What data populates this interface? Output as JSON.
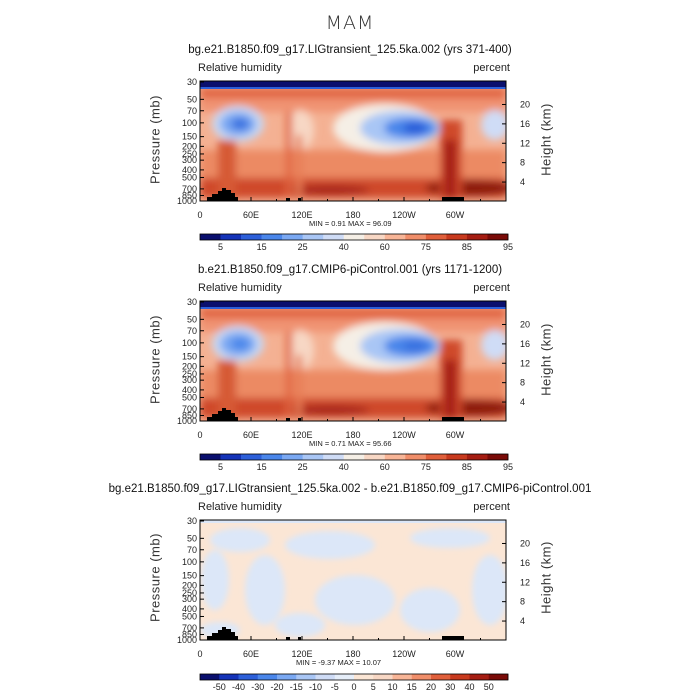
{
  "season": "MAM",
  "units_label": "percent",
  "variable_label": "Relative humidity",
  "y_left_label": "Pressure (mb)",
  "y_right_label": "Height (km)",
  "colors": {
    "land": "#000000",
    "full_field_scale": [
      "#0a0f6e",
      "#1433b8",
      "#2c5fd9",
      "#4a86ea",
      "#7aa8f2",
      "#a9c6f5",
      "#cfdcf6",
      "#f5efe6",
      "#f7d7c4",
      "#f7b597",
      "#f08e6a",
      "#e05f3b",
      "#c83a1e",
      "#a51d12",
      "#7a0b08"
    ],
    "diff_scale": [
      "#0a0f6e",
      "#1433b8",
      "#2c5fd9",
      "#4a86ea",
      "#7aa8f2",
      "#a9c6f5",
      "#cfdcf6",
      "#e6eef9",
      "#fbe6d5",
      "#f7d7c4",
      "#f7b597",
      "#f08e6a",
      "#e05f3b",
      "#c83a1e",
      "#a51d12",
      "#7a0b08"
    ]
  },
  "chart_data": [
    {
      "type": "heatmap",
      "title": "bg.e21.B1850.f09_g17.LIGtransient_125.5ka.002 (yrs 371-400)",
      "x_tick_labels": [
        "0",
        "60E",
        "120E",
        "180",
        "120W",
        "60W"
      ],
      "y_tick_labels_left": [
        "30",
        "50",
        "70",
        "100",
        "150",
        "200",
        "250",
        "300",
        "400",
        "500",
        "700",
        "850",
        "1000"
      ],
      "y_tick_labels_right": [
        "20",
        "16",
        "12",
        "8",
        "4"
      ],
      "min_text": "MIN =    0.91   MAX =   96.09",
      "colorbar_labels": [
        "5",
        "15",
        "25",
        "40",
        "60",
        "75",
        "85",
        "95"
      ]
    },
    {
      "type": "heatmap",
      "title": "b.e21.B1850.f09_g17.CMIP6-piControl.001 (yrs 1171-1200)",
      "x_tick_labels": [
        "0",
        "60E",
        "120E",
        "180",
        "120W",
        "60W"
      ],
      "y_tick_labels_left": [
        "30",
        "50",
        "70",
        "100",
        "150",
        "200",
        "250",
        "300",
        "400",
        "500",
        "700",
        "850",
        "1000"
      ],
      "y_tick_labels_right": [
        "20",
        "16",
        "12",
        "8",
        "4"
      ],
      "min_text": "MIN =    0.71   MAX =   95.66",
      "colorbar_labels": [
        "5",
        "15",
        "25",
        "40",
        "60",
        "75",
        "85",
        "95"
      ]
    },
    {
      "type": "heatmap",
      "title": "bg.e21.B1850.f09_g17.LIGtransient_125.5ka.002 - b.e21.B1850.f09_g17.CMIP6-piControl.001",
      "x_tick_labels": [
        "0",
        "60E",
        "120E",
        "180",
        "120W",
        "60W"
      ],
      "y_tick_labels_left": [
        "30",
        "50",
        "70",
        "100",
        "150",
        "200",
        "250",
        "300",
        "400",
        "500",
        "700",
        "850",
        "1000"
      ],
      "y_tick_labels_right": [
        "20",
        "16",
        "12",
        "8",
        "4"
      ],
      "min_text": "MIN =   -9.37   MAX =   10.07",
      "colorbar_labels": [
        "-50",
        "-40",
        "-30",
        "-20",
        "-15",
        "-10",
        "-5",
        "0",
        "5",
        "10",
        "15",
        "20",
        "30",
        "40",
        "50"
      ]
    }
  ]
}
